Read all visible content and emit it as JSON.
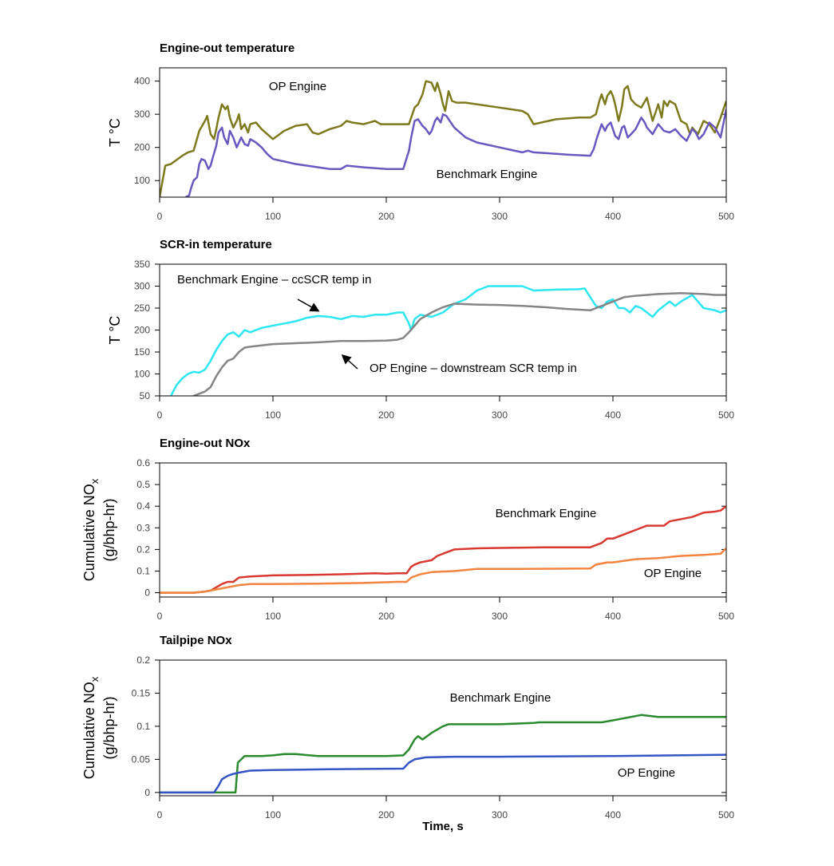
{
  "chart_data": [
    {
      "type": "line",
      "title": "Engine-out temperature",
      "ylabel": "T °C",
      "xlim": [
        0,
        500
      ],
      "xticks": [
        0,
        100,
        200,
        300,
        400,
        500
      ],
      "ylim": [
        50,
        440
      ],
      "yticks": [
        100,
        200,
        300,
        400
      ],
      "series": [
        {
          "name": "OP Engine",
          "color": "#7d7a1e",
          "x": [
            0,
            5,
            10,
            20,
            25,
            30,
            35,
            40,
            42,
            45,
            48,
            50,
            52,
            55,
            58,
            60,
            62,
            65,
            68,
            70,
            72,
            75,
            78,
            80,
            85,
            90,
            95,
            100,
            110,
            120,
            130,
            135,
            140,
            150,
            160,
            165,
            170,
            180,
            190,
            195,
            210,
            220,
            225,
            228,
            232,
            235,
            240,
            243,
            245,
            248,
            250,
            252,
            255,
            258,
            262,
            270,
            300,
            320,
            325,
            330,
            350,
            370,
            380,
            385,
            388,
            390,
            393,
            395,
            398,
            400,
            402,
            405,
            408,
            410,
            413,
            416,
            420,
            425,
            430,
            435,
            438,
            440,
            443,
            445,
            448,
            450,
            455,
            460,
            465,
            468,
            470,
            475,
            480,
            485,
            490,
            495,
            500
          ],
          "values": [
            50,
            145,
            150,
            175,
            185,
            190,
            250,
            280,
            295,
            240,
            225,
            255,
            290,
            330,
            315,
            325,
            290,
            260,
            280,
            300,
            255,
            270,
            245,
            270,
            275,
            255,
            240,
            225,
            250,
            265,
            270,
            245,
            240,
            255,
            265,
            280,
            275,
            270,
            280,
            270,
            270,
            270,
            320,
            330,
            360,
            400,
            395,
            370,
            395,
            360,
            330,
            310,
            370,
            340,
            335,
            335,
            320,
            310,
            300,
            270,
            285,
            290,
            290,
            300,
            340,
            360,
            330,
            355,
            370,
            355,
            330,
            280,
            325,
            375,
            385,
            345,
            330,
            320,
            350,
            280,
            310,
            330,
            290,
            340,
            325,
            340,
            330,
            280,
            270,
            240,
            260,
            240,
            280,
            270,
            245,
            290,
            340
          ]
        },
        {
          "name": "Benchmark Engine",
          "color": "#6a58c0",
          "x": [
            23,
            26,
            28,
            30,
            33,
            35,
            37,
            40,
            43,
            45,
            47,
            50,
            52,
            55,
            57,
            60,
            62,
            65,
            68,
            70,
            72,
            75,
            78,
            80,
            85,
            90,
            95,
            100,
            120,
            140,
            150,
            160,
            165,
            180,
            200,
            215,
            220,
            222,
            225,
            228,
            232,
            235,
            238,
            240,
            243,
            245,
            248,
            250,
            253,
            256,
            260,
            270,
            280,
            300,
            320,
            325,
            330,
            340,
            360,
            380,
            383,
            386,
            390,
            393,
            395,
            398,
            402,
            405,
            408,
            410,
            413,
            416,
            420,
            425,
            428,
            430,
            435,
            440,
            445,
            450,
            455,
            460,
            465,
            470,
            473,
            476,
            480,
            485,
            490,
            495,
            500
          ],
          "values": [
            50,
            55,
            80,
            100,
            110,
            150,
            165,
            160,
            135,
            145,
            170,
            205,
            245,
            260,
            230,
            210,
            250,
            230,
            200,
            215,
            230,
            210,
            205,
            225,
            215,
            200,
            180,
            165,
            150,
            140,
            135,
            135,
            145,
            140,
            135,
            135,
            190,
            230,
            280,
            285,
            265,
            255,
            240,
            250,
            280,
            290,
            275,
            300,
            295,
            280,
            260,
            230,
            215,
            200,
            185,
            190,
            185,
            183,
            178,
            175,
            195,
            230,
            270,
            250,
            265,
            275,
            235,
            225,
            260,
            265,
            230,
            240,
            255,
            290,
            275,
            260,
            240,
            270,
            250,
            245,
            255,
            235,
            220,
            255,
            245,
            225,
            240,
            275,
            260,
            230,
            315
          ]
        }
      ]
    },
    {
      "type": "line",
      "title": "SCR-in temperature",
      "ylabel": "T °C",
      "xlim": [
        0,
        500
      ],
      "xticks": [
        0,
        100,
        200,
        300,
        400,
        500
      ],
      "ylim": [
        50,
        350
      ],
      "yticks": [
        50,
        100,
        150,
        200,
        250,
        300,
        350
      ],
      "series": [
        {
          "name": "Benchmark Engine – ccSCR temp in",
          "color": "#2ee6f2",
          "x": [
            10,
            12,
            15,
            20,
            25,
            30,
            35,
            40,
            45,
            50,
            55,
            60,
            65,
            70,
            75,
            80,
            90,
            100,
            110,
            120,
            130,
            140,
            150,
            160,
            170,
            180,
            190,
            200,
            210,
            215,
            220,
            222,
            225,
            230,
            240,
            250,
            260,
            270,
            280,
            290,
            300,
            320,
            330,
            350,
            370,
            375,
            380,
            385,
            390,
            395,
            400,
            405,
            410,
            415,
            420,
            425,
            430,
            435,
            440,
            445,
            450,
            455,
            460,
            470,
            475,
            480,
            490,
            495,
            500
          ],
          "values": [
            50,
            60,
            75,
            90,
            100,
            105,
            103,
            110,
            130,
            155,
            175,
            190,
            195,
            185,
            200,
            195,
            205,
            210,
            215,
            220,
            228,
            232,
            230,
            225,
            232,
            230,
            235,
            235,
            240,
            240,
            215,
            200,
            225,
            235,
            230,
            240,
            260,
            270,
            290,
            300,
            300,
            300,
            290,
            292,
            293,
            295,
            275,
            255,
            250,
            265,
            270,
            250,
            250,
            240,
            255,
            250,
            240,
            230,
            245,
            255,
            265,
            255,
            265,
            280,
            265,
            250,
            245,
            240,
            245
          ]
        },
        {
          "name": "OP Engine – downstream SCR temp in",
          "color": "#858585",
          "x": [
            30,
            35,
            40,
            45,
            50,
            55,
            60,
            65,
            70,
            75,
            80,
            90,
            100,
            120,
            140,
            160,
            180,
            200,
            210,
            215,
            220,
            225,
            230,
            240,
            250,
            260,
            280,
            300,
            320,
            340,
            360,
            380,
            390,
            400,
            410,
            420,
            430,
            440,
            450,
            460,
            480,
            490,
            500
          ],
          "values": [
            50,
            55,
            60,
            70,
            95,
            115,
            130,
            135,
            150,
            160,
            162,
            165,
            168,
            170,
            172,
            175,
            175,
            176,
            178,
            182,
            195,
            210,
            225,
            240,
            252,
            260,
            258,
            257,
            255,
            252,
            248,
            245,
            255,
            265,
            275,
            278,
            280,
            282,
            283,
            284,
            282,
            280,
            280
          ]
        }
      ]
    },
    {
      "type": "line",
      "title": "Engine-out NOx",
      "ylabel": [
        "Cumulative NO",
        "(g/bhp-hr)"
      ],
      "ylabel_subscript": "x",
      "xlim": [
        0,
        500
      ],
      "xticks": [
        0,
        100,
        200,
        300,
        400,
        500
      ],
      "ylim": [
        -0.02,
        0.6
      ],
      "yticks": [
        0,
        0.1,
        0.2,
        0.3,
        0.4,
        0.5,
        0.6
      ],
      "series": [
        {
          "name": "Benchmark Engine",
          "color": "#d83a32",
          "x": [
            0,
            20,
            30,
            40,
            45,
            50,
            55,
            60,
            65,
            70,
            80,
            100,
            130,
            160,
            190,
            200,
            210,
            218,
            222,
            225,
            230,
            240,
            245,
            250,
            255,
            260,
            280,
            300,
            340,
            380,
            390,
            395,
            400,
            410,
            420,
            430,
            445,
            450,
            470,
            480,
            490,
            495,
            500
          ],
          "values": [
            0,
            0,
            0,
            0.005,
            0.01,
            0.025,
            0.04,
            0.05,
            0.05,
            0.07,
            0.075,
            0.08,
            0.082,
            0.085,
            0.09,
            0.088,
            0.09,
            0.09,
            0.12,
            0.13,
            0.14,
            0.15,
            0.17,
            0.18,
            0.19,
            0.2,
            0.205,
            0.207,
            0.21,
            0.21,
            0.23,
            0.25,
            0.25,
            0.27,
            0.29,
            0.31,
            0.31,
            0.33,
            0.35,
            0.37,
            0.375,
            0.38,
            0.4
          ]
        },
        {
          "name": "OP Engine",
          "color": "#f2843e",
          "x": [
            0,
            30,
            40,
            50,
            60,
            70,
            80,
            100,
            140,
            180,
            210,
            218,
            222,
            230,
            240,
            260,
            280,
            320,
            380,
            385,
            395,
            400,
            420,
            440,
            460,
            480,
            495,
            500
          ],
          "values": [
            0,
            0,
            0.005,
            0.015,
            0.025,
            0.035,
            0.04,
            0.04,
            0.042,
            0.045,
            0.05,
            0.05,
            0.07,
            0.085,
            0.095,
            0.1,
            0.11,
            0.11,
            0.112,
            0.13,
            0.14,
            0.14,
            0.155,
            0.16,
            0.17,
            0.175,
            0.18,
            0.205
          ]
        }
      ]
    },
    {
      "type": "line",
      "title": "Tailpipe NOx",
      "ylabel": [
        "Cumulative NO",
        "(g/bhp-hr)"
      ],
      "ylabel_subscript": "x",
      "xlabel": "Time, s",
      "xlim": [
        0,
        500
      ],
      "xticks": [
        0,
        100,
        200,
        300,
        400,
        500
      ],
      "ylim": [
        -0.005,
        0.2
      ],
      "yticks": [
        0,
        0.05,
        0.1,
        0.15,
        0.2
      ],
      "series": [
        {
          "name": "Benchmark Engine",
          "color": "#2a8a2e",
          "x": [
            0,
            65,
            67,
            69,
            72,
            75,
            90,
            100,
            110,
            120,
            140,
            200,
            215,
            220,
            225,
            228,
            232,
            240,
            245,
            250,
            255,
            300,
            330,
            335,
            390,
            400,
            425,
            440,
            460,
            500
          ],
          "values": [
            0,
            0,
            0,
            0.045,
            0.05,
            0.055,
            0.055,
            0.056,
            0.058,
            0.058,
            0.055,
            0.055,
            0.056,
            0.065,
            0.08,
            0.085,
            0.08,
            0.09,
            0.095,
            0.1,
            0.103,
            0.103,
            0.105,
            0.106,
            0.106,
            0.109,
            0.117,
            0.114,
            0.114,
            0.114
          ]
        },
        {
          "name": "OP Engine",
          "color": "#3454c4",
          "x": [
            0,
            48,
            52,
            55,
            60,
            65,
            70,
            80,
            100,
            150,
            215,
            220,
            225,
            235,
            260,
            300,
            400,
            500
          ],
          "values": [
            0,
            0,
            0.01,
            0.02,
            0.025,
            0.028,
            0.03,
            0.033,
            0.034,
            0.035,
            0.036,
            0.045,
            0.05,
            0.053,
            0.054,
            0.054,
            0.055,
            0.057
          ]
        }
      ]
    }
  ]
}
